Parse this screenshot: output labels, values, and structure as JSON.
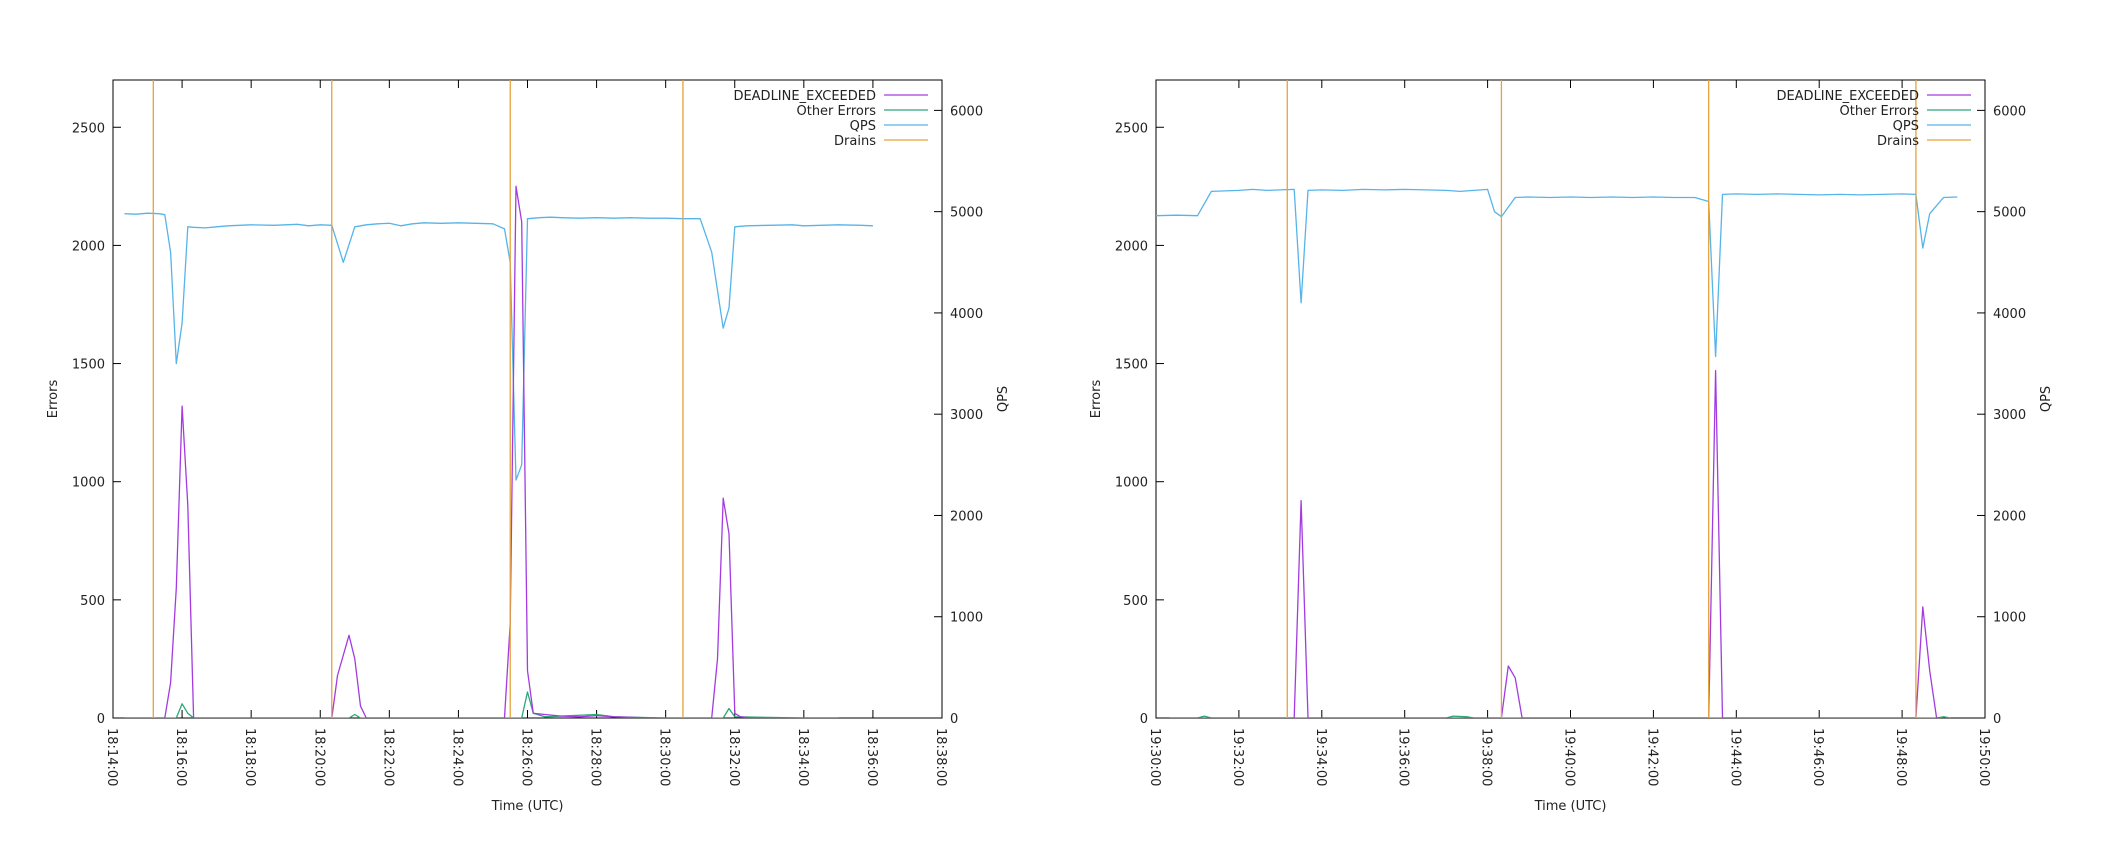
{
  "chart_data": [
    {
      "type": "line",
      "xlabel": "Time (UTC)",
      "ylabel": "Errors",
      "y2label": "QPS",
      "ylim": [
        0,
        2700
      ],
      "y2lim": [
        0,
        6300
      ],
      "yticks": [
        0,
        500,
        1000,
        1500,
        2000,
        2500
      ],
      "y2ticks": [
        0,
        1000,
        2000,
        3000,
        4000,
        5000,
        6000
      ],
      "xlim": [
        "18:14:00",
        "18:38:00"
      ],
      "xticks": [
        "18:14:00",
        "18:16:00",
        "18:18:00",
        "18:20:00",
        "18:22:00",
        "18:24:00",
        "18:26:00",
        "18:28:00",
        "18:30:00",
        "18:32:00",
        "18:34:00",
        "18:36:00",
        "18:38:00"
      ],
      "legend_position": "top-right",
      "grid": false,
      "series": [
        {
          "name": "DEADLINE_EXCEEDED",
          "axis": "left",
          "color": "#a33be0",
          "points": [
            [
              "18:14:20",
              0
            ],
            [
              "18:15:10",
              0
            ],
            [
              "18:15:30",
              0
            ],
            [
              "18:15:40",
              150
            ],
            [
              "18:15:50",
              550
            ],
            [
              "18:16:00",
              1320
            ],
            [
              "18:16:10",
              900
            ],
            [
              "18:16:20",
              0
            ],
            [
              "18:16:40",
              0
            ],
            [
              "18:18:00",
              0
            ],
            [
              "18:20:00",
              0
            ],
            [
              "18:20:20",
              0
            ],
            [
              "18:20:30",
              180
            ],
            [
              "18:20:50",
              350
            ],
            [
              "18:21:00",
              250
            ],
            [
              "18:21:10",
              50
            ],
            [
              "18:21:20",
              0
            ],
            [
              "18:24:00",
              0
            ],
            [
              "18:25:00",
              0
            ],
            [
              "18:25:20",
              0
            ],
            [
              "18:25:30",
              400
            ],
            [
              "18:25:40",
              2250
            ],
            [
              "18:25:50",
              2100
            ],
            [
              "18:26:00",
              200
            ],
            [
              "18:26:10",
              20
            ],
            [
              "18:26:30",
              15
            ],
            [
              "18:27:00",
              8
            ],
            [
              "18:27:30",
              5
            ],
            [
              "18:28:00",
              10
            ],
            [
              "18:28:30",
              5
            ],
            [
              "18:29:00",
              3
            ],
            [
              "18:29:30",
              0
            ],
            [
              "18:31:00",
              0
            ],
            [
              "18:31:20",
              0
            ],
            [
              "18:31:30",
              250
            ],
            [
              "18:31:40",
              930
            ],
            [
              "18:31:50",
              780
            ],
            [
              "18:32:00",
              20
            ],
            [
              "18:32:10",
              5
            ],
            [
              "18:32:30",
              0
            ],
            [
              "18:35:00",
              0
            ]
          ]
        },
        {
          "name": "Other Errors",
          "axis": "left",
          "color": "#2aa876",
          "points": [
            [
              "18:14:20",
              0
            ],
            [
              "18:15:00",
              0
            ],
            [
              "18:15:50",
              0
            ],
            [
              "18:16:00",
              60
            ],
            [
              "18:16:10",
              20
            ],
            [
              "18:16:20",
              0
            ],
            [
              "18:18:00",
              0
            ],
            [
              "18:20:50",
              0
            ],
            [
              "18:21:00",
              15
            ],
            [
              "18:21:10",
              0
            ],
            [
              "18:25:00",
              0
            ],
            [
              "18:25:50",
              0
            ],
            [
              "18:26:00",
              110
            ],
            [
              "18:26:10",
              20
            ],
            [
              "18:26:30",
              5
            ],
            [
              "18:28:00",
              15
            ],
            [
              "18:28:30",
              5
            ],
            [
              "18:30:00",
              0
            ],
            [
              "18:31:40",
              0
            ],
            [
              "18:31:50",
              40
            ],
            [
              "18:32:00",
              5
            ],
            [
              "18:34:00",
              0
            ],
            [
              "18:35:00",
              0
            ]
          ]
        },
        {
          "name": "QPS",
          "axis": "right",
          "color": "#56b4e9",
          "points": [
            [
              "18:14:20",
              4980
            ],
            [
              "18:14:40",
              4975
            ],
            [
              "18:15:00",
              4985
            ],
            [
              "18:15:20",
              4980
            ],
            [
              "18:15:30",
              4970
            ],
            [
              "18:15:40",
              4600
            ],
            [
              "18:15:50",
              3500
            ],
            [
              "18:16:00",
              3900
            ],
            [
              "18:16:10",
              4850
            ],
            [
              "18:16:20",
              4845
            ],
            [
              "18:16:40",
              4840
            ],
            [
              "18:17:00",
              4850
            ],
            [
              "18:17:20",
              4860
            ],
            [
              "18:18:00",
              4870
            ],
            [
              "18:18:40",
              4865
            ],
            [
              "18:19:20",
              4875
            ],
            [
              "18:19:40",
              4860
            ],
            [
              "18:20:00",
              4870
            ],
            [
              "18:20:20",
              4865
            ],
            [
              "18:20:40",
              4500
            ],
            [
              "18:21:00",
              4850
            ],
            [
              "18:21:20",
              4870
            ],
            [
              "18:21:40",
              4880
            ],
            [
              "18:22:00",
              4885
            ],
            [
              "18:22:20",
              4860
            ],
            [
              "18:22:40",
              4880
            ],
            [
              "18:23:00",
              4890
            ],
            [
              "18:23:30",
              4885
            ],
            [
              "18:24:00",
              4890
            ],
            [
              "18:24:30",
              4885
            ],
            [
              "18:25:00",
              4880
            ],
            [
              "18:25:20",
              4830
            ],
            [
              "18:25:30",
              4500
            ],
            [
              "18:25:40",
              2350
            ],
            [
              "18:25:50",
              2500
            ],
            [
              "18:26:00",
              4930
            ],
            [
              "18:26:20",
              4940
            ],
            [
              "18:26:40",
              4945
            ],
            [
              "18:27:00",
              4940
            ],
            [
              "18:27:30",
              4935
            ],
            [
              "18:28:00",
              4940
            ],
            [
              "18:28:30",
              4935
            ],
            [
              "18:29:00",
              4940
            ],
            [
              "18:29:30",
              4935
            ],
            [
              "18:30:00",
              4935
            ],
            [
              "18:30:30",
              4930
            ],
            [
              "18:31:00",
              4930
            ],
            [
              "18:31:20",
              4600
            ],
            [
              "18:31:40",
              3850
            ],
            [
              "18:31:50",
              4050
            ],
            [
              "18:32:00",
              4850
            ],
            [
              "18:32:20",
              4860
            ],
            [
              "18:33:00",
              4865
            ],
            [
              "18:33:40",
              4870
            ],
            [
              "18:34:00",
              4860
            ],
            [
              "18:35:00",
              4870
            ],
            [
              "18:35:40",
              4865
            ],
            [
              "18:36:00",
              4860
            ]
          ]
        },
        {
          "name": "Drains",
          "axis": "vertical",
          "color": "#e6a23c",
          "x": [
            "18:15:10",
            "18:20:20",
            "18:25:30",
            "18:30:30"
          ]
        }
      ]
    },
    {
      "type": "line",
      "xlabel": "Time (UTC)",
      "ylabel": "Errors",
      "y2label": "QPS",
      "ylim": [
        0,
        2700
      ],
      "y2lim": [
        0,
        6300
      ],
      "yticks": [
        0,
        500,
        1000,
        1500,
        2000,
        2500
      ],
      "y2ticks": [
        0,
        1000,
        2000,
        3000,
        4000,
        5000,
        6000
      ],
      "xlim": [
        "19:30:00",
        "19:50:00"
      ],
      "xticks": [
        "19:30:00",
        "19:32:00",
        "19:34:00",
        "19:36:00",
        "19:38:00",
        "19:40:00",
        "19:42:00",
        "19:44:00",
        "19:46:00",
        "19:48:00",
        "19:50:00"
      ],
      "legend_position": "top-right",
      "grid": false,
      "series": [
        {
          "name": "DEADLINE_EXCEEDED",
          "axis": "left",
          "color": "#a33be0",
          "points": [
            [
              "19:30:20",
              0
            ],
            [
              "19:33:00",
              0
            ],
            [
              "19:33:20",
              0
            ],
            [
              "19:33:30",
              920
            ],
            [
              "19:33:40",
              0
            ],
            [
              "19:34:00",
              0
            ],
            [
              "19:38:20",
              0
            ],
            [
              "19:38:30",
              220
            ],
            [
              "19:38:40",
              170
            ],
            [
              "19:38:50",
              0
            ],
            [
              "19:43:00",
              0
            ],
            [
              "19:43:20",
              0
            ],
            [
              "19:43:30",
              1470
            ],
            [
              "19:43:40",
              0
            ],
            [
              "19:44:00",
              0
            ],
            [
              "19:48:20",
              0
            ],
            [
              "19:48:30",
              470
            ],
            [
              "19:48:40",
              200
            ],
            [
              "19:48:50",
              0
            ],
            [
              "19:49:00",
              0
            ]
          ]
        },
        {
          "name": "Other Errors",
          "axis": "left",
          "color": "#2aa876",
          "points": [
            [
              "19:30:20",
              0
            ],
            [
              "19:31:00",
              0
            ],
            [
              "19:31:10",
              8
            ],
            [
              "19:31:20",
              0
            ],
            [
              "19:37:00",
              0
            ],
            [
              "19:37:10",
              8
            ],
            [
              "19:37:30",
              5
            ],
            [
              "19:37:40",
              0
            ],
            [
              "19:48:50",
              0
            ],
            [
              "19:49:00",
              5
            ],
            [
              "19:49:10",
              0
            ]
          ]
        },
        {
          "name": "QPS",
          "axis": "right",
          "color": "#56b4e9",
          "points": [
            [
              "19:30:00",
              4960
            ],
            [
              "19:30:30",
              4965
            ],
            [
              "19:31:00",
              4960
            ],
            [
              "19:31:20",
              5200
            ],
            [
              "19:31:40",
              5205
            ],
            [
              "19:32:00",
              5210
            ],
            [
              "19:32:20",
              5220
            ],
            [
              "19:32:40",
              5210
            ],
            [
              "19:33:00",
              5215
            ],
            [
              "19:33:20",
              5220
            ],
            [
              "19:33:30",
              4100
            ],
            [
              "19:33:40",
              5210
            ],
            [
              "19:34:00",
              5215
            ],
            [
              "19:34:30",
              5210
            ],
            [
              "19:35:00",
              5220
            ],
            [
              "19:35:30",
              5215
            ],
            [
              "19:36:00",
              5220
            ],
            [
              "19:36:30",
              5215
            ],
            [
              "19:37:00",
              5210
            ],
            [
              "19:37:20",
              5200
            ],
            [
              "19:37:40",
              5210
            ],
            [
              "19:38:00",
              5220
            ],
            [
              "19:38:10",
              5000
            ],
            [
              "19:38:20",
              4950
            ],
            [
              "19:38:40",
              5140
            ],
            [
              "19:39:00",
              5145
            ],
            [
              "19:39:30",
              5140
            ],
            [
              "19:40:00",
              5145
            ],
            [
              "19:40:30",
              5140
            ],
            [
              "19:41:00",
              5145
            ],
            [
              "19:41:30",
              5140
            ],
            [
              "19:42:00",
              5145
            ],
            [
              "19:42:30",
              5140
            ],
            [
              "19:43:00",
              5140
            ],
            [
              "19:43:20",
              5100
            ],
            [
              "19:43:30",
              3570
            ],
            [
              "19:43:40",
              5170
            ],
            [
              "19:44:00",
              5175
            ],
            [
              "19:44:30",
              5170
            ],
            [
              "19:45:00",
              5175
            ],
            [
              "19:45:30",
              5170
            ],
            [
              "19:46:00",
              5165
            ],
            [
              "19:46:30",
              5170
            ],
            [
              "19:47:00",
              5165
            ],
            [
              "19:47:30",
              5170
            ],
            [
              "19:48:00",
              5175
            ],
            [
              "19:48:20",
              5170
            ],
            [
              "19:48:30",
              4640
            ],
            [
              "19:48:40",
              4980
            ],
            [
              "19:49:00",
              5140
            ],
            [
              "19:49:20",
              5145
            ]
          ]
        },
        {
          "name": "Drains",
          "axis": "vertical",
          "color": "#e6a23c",
          "x": [
            "19:33:10",
            "19:38:20",
            "19:43:20",
            "19:48:20"
          ]
        }
      ]
    }
  ]
}
